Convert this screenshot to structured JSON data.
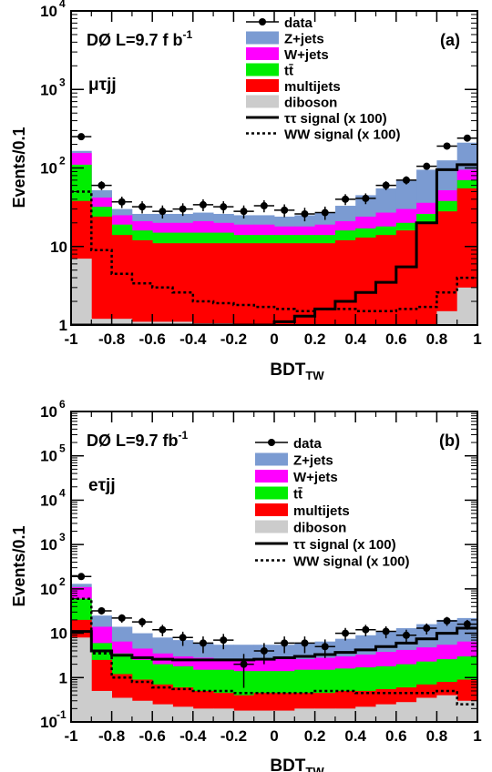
{
  "chart_data": [
    {
      "type": "bar",
      "stacked": true,
      "log_y": true,
      "panel": "(a)",
      "experiment": "DØ L=9.7 f b",
      "lumi_superscript": "-1",
      "channel": "μτjj",
      "xlabel": "BDT",
      "xlabel_sub": "TW",
      "ylabel": "Events/0.1",
      "xlim": [
        -1,
        1
      ],
      "ylim": [
        1,
        10000
      ],
      "x_ticks": [
        "-1",
        "-0.8",
        "-0.6",
        "-0.4",
        "-0.2",
        "0",
        "0.2",
        "0.4",
        "0.6",
        "0.8",
        "1"
      ],
      "y_ticks": [
        {
          "base": "1",
          "exp": ""
        },
        {
          "base": "10",
          "exp": ""
        },
        {
          "base": "10",
          "exp": "2"
        },
        {
          "base": "10",
          "exp": "3"
        },
        {
          "base": "10",
          "exp": "4"
        }
      ],
      "bin_edges": [
        -1.0,
        -0.9,
        -0.8,
        -0.7,
        -0.6,
        -0.5,
        -0.4,
        -0.3,
        -0.2,
        -0.1,
        0.0,
        0.1,
        0.2,
        0.3,
        0.4,
        0.5,
        0.6,
        0.7,
        0.8,
        0.9,
        1.0
      ],
      "legend": [
        {
          "label": "data",
          "kind": "marker"
        },
        {
          "label": "Z+jets",
          "kind": "fill",
          "color": "#7b9bd2"
        },
        {
          "label": "W+jets",
          "kind": "fill",
          "color": "#ff00ff"
        },
        {
          "label": "tt̄",
          "kind": "fill",
          "color": "#00ee00"
        },
        {
          "label": "multijets",
          "kind": "fill",
          "color": "#ff0000"
        },
        {
          "label": "diboson",
          "kind": "fill",
          "color": "#cccccc"
        },
        {
          "label": "ττ signal (x 100)",
          "kind": "solid"
        },
        {
          "label": "WW signal (x 100)",
          "kind": "dotted"
        }
      ],
      "stack_order": [
        "diboson",
        "multijets",
        "tt̄",
        "W+jets",
        "Z+jets"
      ],
      "stack_totals": {
        "diboson": [
          7,
          1.2,
          1.2,
          1.1,
          1.1,
          1.1,
          1.05,
          1.05,
          1.0,
          1.0,
          1.0,
          1.0,
          1.0,
          1.0,
          1.0,
          1.0,
          1.0,
          1.0,
          1.5,
          3.0
        ],
        "multijets": [
          38,
          24,
          14,
          12,
          11,
          11,
          11,
          11,
          11,
          11,
          11,
          11,
          11,
          12,
          13,
          14,
          16,
          20,
          28,
          55
        ],
        "tt̄": [
          110,
          32,
          19,
          16,
          15,
          15,
          15,
          15,
          14,
          14,
          14,
          14,
          14,
          16,
          17,
          18,
          20,
          26,
          38,
          70
        ],
        "W+jets": [
          155,
          42,
          25,
          21,
          20,
          20,
          21,
          20,
          19,
          19,
          18,
          18,
          19,
          21,
          24,
          27,
          30,
          36,
          52,
          95
        ],
        "Z+jets": [
          165,
          52,
          30,
          26,
          26,
          26,
          27,
          26,
          25,
          25,
          24,
          25,
          27,
          33,
          45,
          55,
          70,
          95,
          125,
          210
        ]
      },
      "data_points": [
        {
          "x": -0.95,
          "y": 250
        },
        {
          "x": -0.85,
          "y": 60
        },
        {
          "x": -0.75,
          "y": 37
        },
        {
          "x": -0.65,
          "y": 32
        },
        {
          "x": -0.55,
          "y": 28
        },
        {
          "x": -0.45,
          "y": 30
        },
        {
          "x": -0.35,
          "y": 34
        },
        {
          "x": -0.25,
          "y": 32
        },
        {
          "x": -0.15,
          "y": 28
        },
        {
          "x": -0.05,
          "y": 33
        },
        {
          "x": 0.05,
          "y": 29
        },
        {
          "x": 0.15,
          "y": 26
        },
        {
          "x": 0.25,
          "y": 27
        },
        {
          "x": 0.35,
          "y": 40
        },
        {
          "x": 0.45,
          "y": 41
        },
        {
          "x": 0.55,
          "y": 60
        },
        {
          "x": 0.65,
          "y": 70
        },
        {
          "x": 0.75,
          "y": 105
        },
        {
          "x": 0.85,
          "y": 190
        },
        {
          "x": 0.95,
          "y": 240
        }
      ],
      "tautau_signal": [
        1,
        1,
        1,
        1,
        1,
        1,
        1,
        1,
        1,
        1,
        1.1,
        1.3,
        1.6,
        2.0,
        2.6,
        3.5,
        5.5,
        20,
        95,
        110
      ],
      "ww_signal": [
        50,
        9,
        4.5,
        3.4,
        3.0,
        2.6,
        2.0,
        1.9,
        1.8,
        1.7,
        1.6,
        1.5,
        1.6,
        1.6,
        1.5,
        1.5,
        1.6,
        1.7,
        2.6,
        4.0
      ]
    },
    {
      "type": "bar",
      "stacked": true,
      "log_y": true,
      "panel": "(b)",
      "experiment": "DØ L=9.7 fb",
      "lumi_superscript": "-1",
      "channel": "eτjj",
      "xlabel": "BDT",
      "xlabel_sub": "TW",
      "ylabel": "Events/0.1",
      "xlim": [
        -1,
        1
      ],
      "ylim": [
        0.1,
        1000000
      ],
      "x_ticks": [
        "-1",
        "-0.8",
        "-0.6",
        "-0.4",
        "-0.2",
        "0",
        "0.2",
        "0.4",
        "0.6",
        "0.8",
        "1"
      ],
      "y_ticks": [
        {
          "base": "10",
          "exp": "-1"
        },
        {
          "base": "1",
          "exp": ""
        },
        {
          "base": "10",
          "exp": ""
        },
        {
          "base": "10",
          "exp": "2"
        },
        {
          "base": "10",
          "exp": "3"
        },
        {
          "base": "10",
          "exp": "4"
        },
        {
          "base": "10",
          "exp": "5"
        },
        {
          "base": "10",
          "exp": "6"
        }
      ],
      "bin_edges": [
        -1.0,
        -0.9,
        -0.8,
        -0.7,
        -0.6,
        -0.5,
        -0.4,
        -0.3,
        -0.2,
        -0.1,
        0.0,
        0.1,
        0.2,
        0.3,
        0.4,
        0.5,
        0.6,
        0.7,
        0.8,
        0.9,
        1.0
      ],
      "legend": [
        {
          "label": "data",
          "kind": "marker"
        },
        {
          "label": "Z+jets",
          "kind": "fill",
          "color": "#7b9bd2"
        },
        {
          "label": "W+jets",
          "kind": "fill",
          "color": "#ff00ff"
        },
        {
          "label": "tt̄",
          "kind": "fill",
          "color": "#00ee00"
        },
        {
          "label": "multijets",
          "kind": "fill",
          "color": "#ff0000"
        },
        {
          "label": "diboson",
          "kind": "fill",
          "color": "#cccccc"
        },
        {
          "label": "ττ signal (x 100)",
          "kind": "solid"
        },
        {
          "label": "WW signal (x 100)",
          "kind": "dotted"
        }
      ],
      "stack_order": [
        "diboson",
        "multijets",
        "tt̄",
        "W+jets",
        "Z+jets"
      ],
      "stack_totals": {
        "diboson": [
          8,
          0.5,
          0.35,
          0.3,
          0.25,
          0.22,
          0.2,
          0.2,
          0.18,
          0.18,
          0.18,
          0.2,
          0.2,
          0.2,
          0.22,
          0.25,
          0.28,
          0.35,
          0.4,
          0.3
        ],
        "multijets": [
          20,
          2.5,
          1.2,
          0.9,
          0.7,
          0.6,
          0.5,
          0.45,
          0.4,
          0.45,
          0.45,
          0.45,
          0.45,
          0.5,
          0.5,
          0.55,
          0.6,
          0.7,
          0.8,
          0.9
        ],
        "tt̄": [
          60,
          6,
          3.5,
          2.5,
          2.0,
          1.8,
          1.5,
          1.5,
          1.4,
          1.4,
          1.4,
          1.5,
          1.5,
          1.6,
          1.7,
          1.8,
          2.0,
          2.3,
          2.6,
          3.0
        ],
        "W+jets": [
          110,
          14,
          6.5,
          4.5,
          3.5,
          3.0,
          2.8,
          2.6,
          2.5,
          2.5,
          2.6,
          2.6,
          2.8,
          3.0,
          3.3,
          3.8,
          4.2,
          4.8,
          5.5,
          6.5
        ],
        "Z+jets": [
          130,
          25,
          14,
          10,
          8,
          7,
          6,
          5.5,
          5.5,
          5.5,
          5.5,
          6,
          6.5,
          7.5,
          9,
          11,
          13,
          16,
          20,
          22
        ]
      },
      "data_points": [
        {
          "x": -0.95,
          "y": 190
        },
        {
          "x": -0.85,
          "y": 32
        },
        {
          "x": -0.75,
          "y": 22
        },
        {
          "x": -0.65,
          "y": 18
        },
        {
          "x": -0.55,
          "y": 12
        },
        {
          "x": -0.45,
          "y": 8
        },
        {
          "x": -0.35,
          "y": 6
        },
        {
          "x": -0.25,
          "y": 7
        },
        {
          "x": -0.15,
          "y": 2
        },
        {
          "x": -0.05,
          "y": 4
        },
        {
          "x": 0.05,
          "y": 6
        },
        {
          "x": 0.15,
          "y": 6
        },
        {
          "x": 0.25,
          "y": 5
        },
        {
          "x": 0.35,
          "y": 10
        },
        {
          "x": 0.45,
          "y": 12
        },
        {
          "x": 0.55,
          "y": 11
        },
        {
          "x": 0.65,
          "y": 9
        },
        {
          "x": 0.75,
          "y": 13
        },
        {
          "x": 0.85,
          "y": 19
        },
        {
          "x": 0.95,
          "y": 16
        }
      ],
      "tautau_signal": [
        11,
        4,
        3.2,
        2.8,
        2.6,
        2.5,
        2.5,
        2.5,
        2.5,
        2.6,
        2.8,
        3.0,
        3.3,
        3.7,
        4.2,
        5.0,
        6.0,
        7.5,
        10,
        13
      ],
      "ww_signal": [
        60,
        3.5,
        1.0,
        0.8,
        0.6,
        0.55,
        0.5,
        0.5,
        0.45,
        0.45,
        0.45,
        0.45,
        0.5,
        0.5,
        0.45,
        0.45,
        0.45,
        0.45,
        0.5,
        0.25
      ]
    }
  ]
}
